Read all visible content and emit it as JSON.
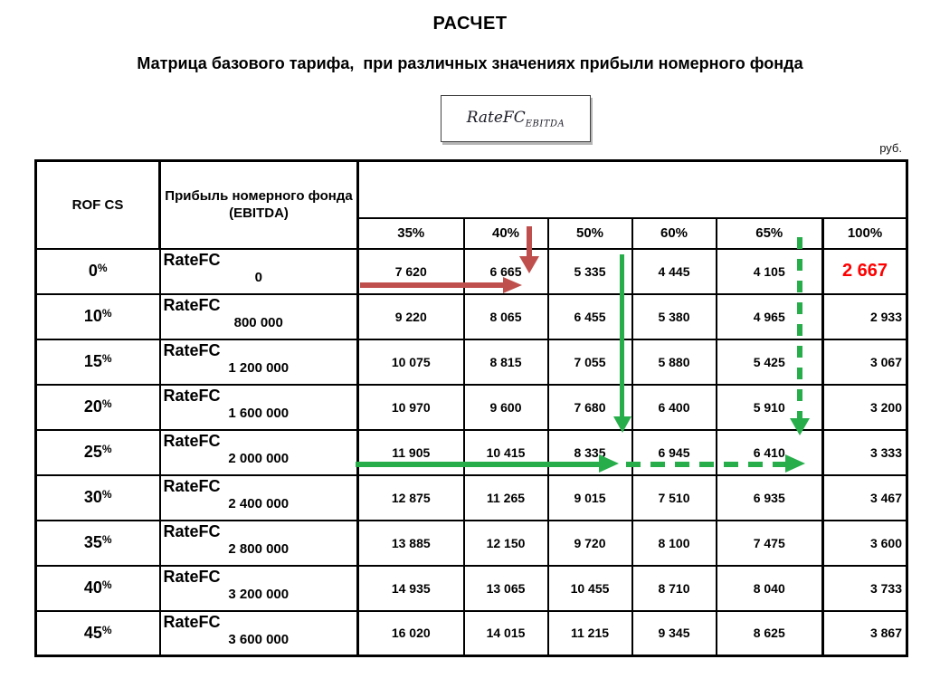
{
  "page": {
    "title": "РАСЧЕТ",
    "subtitle": "Матрица базового тарифа,  при различных значениях прибыли номерного фонда",
    "currency_note": "руб.",
    "formula": {
      "base": "RateFC",
      "subscript": "EBITDA"
    }
  },
  "table": {
    "col1_header": "ROF CS",
    "col2_header": "Прибыль номерного фонда (EBITDA)",
    "percent_headers": [
      "35%",
      "40%",
      "50%",
      "60%",
      "65%",
      "100%"
    ],
    "row_label_prefix": "RateFC",
    "highlight": {
      "row": 0,
      "col": 5,
      "color": "#ff0000"
    },
    "rows": [
      {
        "rofcs": "0%",
        "ebitda": "0",
        "values": [
          "7 620",
          "6 665",
          "5 335",
          "4 445",
          "4 105",
          "2 667"
        ]
      },
      {
        "rofcs": "10%",
        "ebitda": "800 000",
        "values": [
          "9 220",
          "8 065",
          "6 455",
          "5 380",
          "4 965",
          "2 933"
        ]
      },
      {
        "rofcs": "15%",
        "ebitda": "1 200 000",
        "values": [
          "10 075",
          "8 815",
          "7 055",
          "5 880",
          "5 425",
          "3 067"
        ]
      },
      {
        "rofcs": "20%",
        "ebitda": "1 600 000",
        "values": [
          "10 970",
          "9 600",
          "7 680",
          "6 400",
          "5 910",
          "3 200"
        ]
      },
      {
        "rofcs": "25%",
        "ebitda": "2 000 000",
        "values": [
          "11 905",
          "10 415",
          "8 335",
          "6 945",
          "6 410",
          "3 333"
        ]
      },
      {
        "rofcs": "30%",
        "ebitda": "2 400 000",
        "values": [
          "12 875",
          "11 265",
          "9 015",
          "7 510",
          "6 935",
          "3 467"
        ]
      },
      {
        "rofcs": "35%",
        "ebitda": "2 800 000",
        "values": [
          "13 885",
          "12 150",
          "9 720",
          "8 100",
          "7 475",
          "3 600"
        ]
      },
      {
        "rofcs": "40%",
        "ebitda": "3 200 000",
        "values": [
          "14 935",
          "13 065",
          "10 455",
          "8 710",
          "8 040",
          "3 733"
        ]
      },
      {
        "rofcs": "45%",
        "ebitda": "3 600 000",
        "values": [
          "16 020",
          "14 015",
          "11 215",
          "9 345",
          "8 625",
          "3 867"
        ]
      }
    ]
  },
  "annotations": {
    "colors": {
      "red_arrow": "#bf4f4c",
      "green_arrow": "#27ae4b",
      "highlight_value": "#ff0000"
    },
    "arrows": [
      {
        "id": "red-vertical",
        "style": "solid",
        "direction": "down",
        "color": "#bf4f4c",
        "location": "40% header into row 0%"
      },
      {
        "id": "red-horizontal",
        "style": "solid",
        "direction": "right",
        "color": "#bf4f4c",
        "location": "row 0% from 35% column to 40% column"
      },
      {
        "id": "green-vertical-solid",
        "style": "solid",
        "direction": "down",
        "color": "#27ae4b",
        "location": "right edge of 50% column down to row 25%"
      },
      {
        "id": "green-horizontal-solid",
        "style": "solid",
        "direction": "right",
        "color": "#27ae4b",
        "location": "row 25% from 35% column to 50% column"
      },
      {
        "id": "green-horizontal-dashed",
        "style": "dashed",
        "direction": "right",
        "color": "#27ae4b",
        "location": "row 25% from 50% column to 65% column"
      },
      {
        "id": "green-vertical-dashed",
        "style": "dashed",
        "direction": "down",
        "color": "#27ae4b",
        "location": "right edge of 65% column down to row 25%"
      }
    ]
  }
}
